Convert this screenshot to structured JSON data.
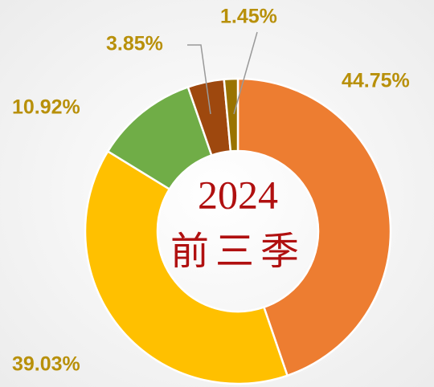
{
  "chart_data": {
    "type": "donut",
    "center_text": [
      "2024",
      "前三季"
    ],
    "categories": [
      null,
      null,
      null,
      null,
      null
    ],
    "values": [
      44.75,
      39.03,
      10.92,
      3.85,
      1.45
    ],
    "value_labels": [
      "44.75%",
      "39.03%",
      "10.92%",
      "3.85%",
      "1.45%"
    ],
    "colors": [
      "#ED7D31",
      "#FFC000",
      "#70AD47",
      "#9E480E",
      "#997300"
    ]
  }
}
